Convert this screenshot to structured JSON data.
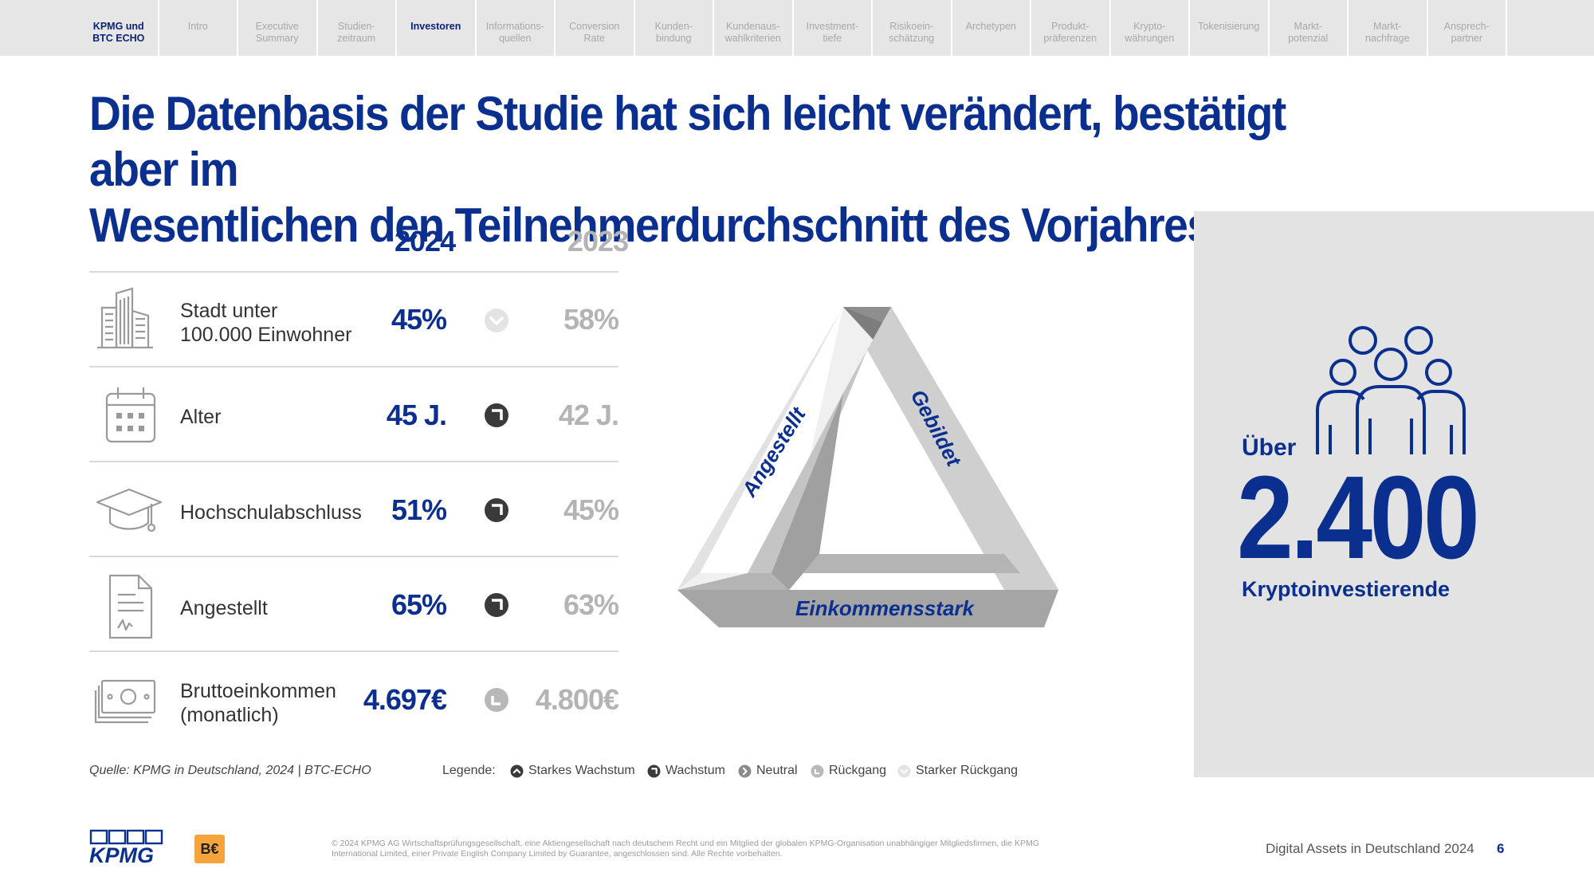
{
  "nav": {
    "tabs": [
      {
        "label": "KPMG und\nBTC ECHO",
        "state": "brand"
      },
      {
        "label": "Intro",
        "state": "inactive"
      },
      {
        "label": "Executive\nSummary",
        "state": "inactive"
      },
      {
        "label": "Studien-\nzeitraum",
        "state": "inactive"
      },
      {
        "label": "Investoren",
        "state": "active"
      },
      {
        "label": "Informations-\nquellen",
        "state": "inactive"
      },
      {
        "label": "Conversion\nRate",
        "state": "inactive"
      },
      {
        "label": "Kunden-\nbindung",
        "state": "inactive"
      },
      {
        "label": "Kundenaus-\nwahlkriterien",
        "state": "inactive"
      },
      {
        "label": "Investment-\ntiefe",
        "state": "inactive"
      },
      {
        "label": "Risikoein-\nschätzung",
        "state": "inactive"
      },
      {
        "label": "Archetypen",
        "state": "inactive"
      },
      {
        "label": "Produkt-\npräferenzen",
        "state": "inactive"
      },
      {
        "label": "Krypto-\nwährungen",
        "state": "inactive"
      },
      {
        "label": "Tokenisierung",
        "state": "inactive"
      },
      {
        "label": "Markt-\npotenzial",
        "state": "inactive"
      },
      {
        "label": "Markt-\nnachfrage",
        "state": "inactive"
      },
      {
        "label": "Ansprech-\npartner",
        "state": "inactive"
      }
    ]
  },
  "headline": "Die Datenbasis der Studie hat sich leicht verändert, bestätigt aber im\nWesentlichen den Teilnehmerdurchschnitt des Vorjahres",
  "table": {
    "col_2024": "2024",
    "col_2023": "2023",
    "rows": [
      {
        "label": "Stadt unter\n100.000 Einwohner",
        "v2024": "45%",
        "v2023": "58%",
        "trend": "strong-decline",
        "icon": "buildings-icon"
      },
      {
        "label": "Alter",
        "v2024": "45 J.",
        "v2023": "42 J.",
        "trend": "growth",
        "icon": "calendar-icon"
      },
      {
        "label": "Hochschulabschluss",
        "v2024": "51%",
        "v2023": "45%",
        "trend": "growth",
        "icon": "graduation-cap-icon"
      },
      {
        "label": "Angestellt",
        "v2024": "65%",
        "v2023": "63%",
        "trend": "growth",
        "icon": "document-icon"
      },
      {
        "label": "Bruttoeinkommen\n(monatlich)",
        "v2024": "4.697€",
        "v2023": "4.800€",
        "trend": "decline",
        "icon": "banknotes-icon"
      }
    ]
  },
  "source": "Quelle: KPMG in Deutschland, 2024 | BTC-ECHO",
  "legend": {
    "title": "Legende:",
    "items": [
      {
        "label": "Starkes Wachstum",
        "icon": "strong-growth-icon"
      },
      {
        "label": "Wachstum",
        "icon": "growth-icon"
      },
      {
        "label": "Neutral",
        "icon": "neutral-icon"
      },
      {
        "label": "Rückgang",
        "icon": "decline-icon"
      },
      {
        "label": "Starker Rückgang",
        "icon": "strong-decline-icon"
      }
    ]
  },
  "triangle": {
    "left_label": "Angestellt",
    "right_label": "Gebildet",
    "bottom_label": "Einkommensstark"
  },
  "panel": {
    "prefix": "Über",
    "number": "2.400",
    "label": "Kryptoinvestierende",
    "icon": "people-group-icon"
  },
  "footer": {
    "kpmg_logo_text": "KPMG",
    "btc_logo_text": "B€",
    "copyright": "© 2024 KPMG AG Wirtschaftsprüfungsgesellschaft, eine Aktiengesellschaft nach deutschem Recht und ein Mitglied der globalen KPMG-Organisation unabhängiger Mitgliedsfirmen, die KPMG International Limited, einer Private English Company Limited by Guarantee, angeschlossen sind. Alle Rechte vorbehalten.",
    "title": "Digital Assets in Deutschland 2024",
    "page": "6"
  },
  "colors": {
    "kpmg_blue": "#0b2f8f",
    "grey_text": "#b4b4b4",
    "panel_bg": "#e3e3e3",
    "trend_dark": "#3a3a3a",
    "trend_light": "#cfcfcf"
  }
}
